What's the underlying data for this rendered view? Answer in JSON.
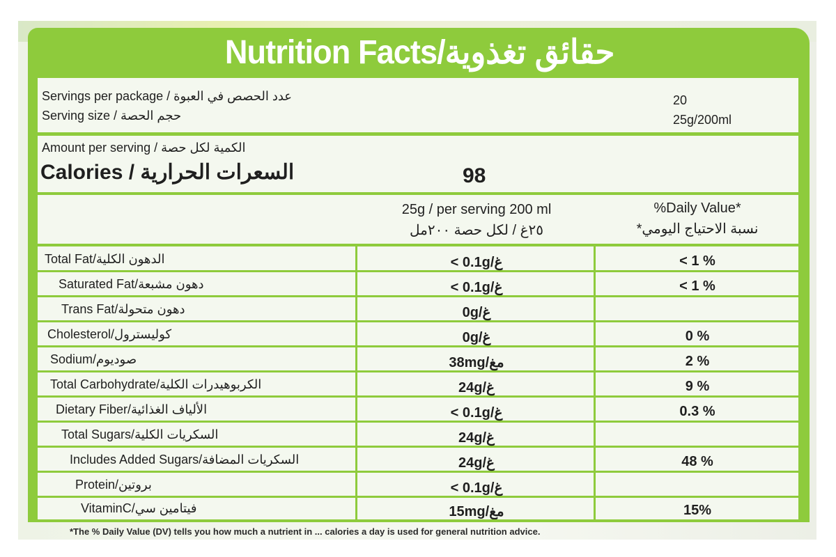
{
  "title": "Nutrition Facts/حقائق تغذوية",
  "servings_per_package": {
    "label": "Servings per package / عدد الحصص في العبوة",
    "value": "20"
  },
  "serving_size": {
    "label": "Serving size / حجم الحصة",
    "value": "25g/200ml"
  },
  "amount_per_serving": "Amount per serving / الكمية لكل حصة",
  "calories": {
    "label": "Calories / السعرات الحرارية",
    "value": "98"
  },
  "column_headers": {
    "per_serving_en": "25g / per serving 200 ml",
    "per_serving_ar": "٢٥غ / لكل حصة ٢٠٠مل",
    "dv_en": "%Daily Value*",
    "dv_ar": "نسبة الاحتياج اليومي*"
  },
  "nutrients": [
    {
      "name": "Total Fat/الدهون الكلية",
      "amount": "< 0.1g/غ",
      "dv": "< 1 %"
    },
    {
      "name": "Saturated Fat/دهون مشبعة",
      "amount": "< 0.1g/غ",
      "dv": "< 1 %"
    },
    {
      "name": "Trans Fat/دهون متحولة",
      "amount": "0g/غ",
      "dv": ""
    },
    {
      "name": "Cholesterol/كوليسترول",
      "amount": "0g/غ",
      "dv": "0 %"
    },
    {
      "name": "Sodium/صوديوم",
      "amount": "38mg/مغ",
      "dv": "2 %"
    },
    {
      "name": "Total Carbohydrate/الكربوهيدرات الكلية",
      "amount": "24g/غ",
      "dv": "9 %"
    },
    {
      "name": "Dietary Fiber/الألياف الغذائية",
      "amount": "< 0.1g/غ",
      "dv": "0.3 %"
    },
    {
      "name": "Total Sugars/السكريات الكلية",
      "amount": "24g/غ",
      "dv": ""
    },
    {
      "name": "Includes Added Sugars/السكريات المضافة",
      "amount": "24g/غ",
      "dv": "48 %"
    },
    {
      "name": "Protein/بروتين",
      "amount": "< 0.1g/غ",
      "dv": ""
    },
    {
      "name": "VitaminC/فيتامين سي",
      "amount": "15mg/مغ",
      "dv": "15%"
    }
  ],
  "footnote": "*The % Daily Value (DV) tells you how much a nutrient in ... calories a day is used for general nutrition advice.",
  "colors": {
    "label_green": "#8ecb3c",
    "panel_bg": "#f4f8ef",
    "text": "#1f1f1f"
  }
}
